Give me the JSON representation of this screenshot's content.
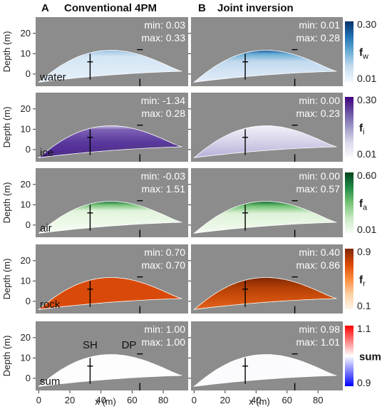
{
  "columns": [
    {
      "letter": "A",
      "title": "Conventional 4PM"
    },
    {
      "letter": "B",
      "title": "Joint inversion"
    }
  ],
  "axes": {
    "ylabel": "Depth (m)",
    "xlabel": "x (m)",
    "xticks": [
      "0",
      "20",
      "40",
      "60",
      "80"
    ],
    "yticks": [
      "0",
      "10",
      "20"
    ]
  },
  "markers": {
    "sh": "SH",
    "dp": "DP"
  },
  "rows": [
    {
      "key": "water",
      "label": "water",
      "colorbar": {
        "symbol": "f",
        "sub": "w",
        "max": "0.30",
        "min": "0.01",
        "colors": [
          "#f4f9fe",
          "#c6dcef",
          "#6aaed6",
          "#2171b5",
          "#08306b"
        ]
      },
      "conventional": {
        "min": "min: 0.03",
        "max": "max: 0.33"
      },
      "joint": {
        "min": "min: 0.01",
        "max": "max: 0.28"
      }
    },
    {
      "key": "ice",
      "label": "ice",
      "colorbar": {
        "symbol": "f",
        "sub": "i",
        "max": "0.30",
        "min": "0.01",
        "colors": [
          "#fbfafd",
          "#dadaeb",
          "#9e9ac8",
          "#6a51a3",
          "#3f007d"
        ]
      },
      "conventional": {
        "min": "min: -1.34",
        "max": "max: 0.28"
      },
      "joint": {
        "min": "min: 0.00",
        "max": "max: 0.23"
      }
    },
    {
      "key": "air",
      "label": "air",
      "colorbar": {
        "symbol": "f",
        "sub": "a",
        "max": "0.60",
        "min": "0.01",
        "colors": [
          "#f7fcf5",
          "#c7e9c0",
          "#74c476",
          "#238b45",
          "#00441b"
        ]
      },
      "conventional": {
        "min": "min: -0.03",
        "max": "max: 1.51"
      },
      "joint": {
        "min": "min: 0.00",
        "max": "max: 0.57"
      }
    },
    {
      "key": "rock",
      "label": "rock",
      "colorbar": {
        "symbol": "f",
        "sub": "r",
        "max": "0.9",
        "min": "0.1",
        "colors": [
          "#fff5eb",
          "#fdd0a2",
          "#fd8d3c",
          "#d94801",
          "#7f2704"
        ]
      },
      "conventional": {
        "min": "min: 0.70",
        "max": "max: 0.70"
      },
      "joint": {
        "min": "min: 0.40",
        "max": "max: 0.86"
      }
    },
    {
      "key": "sum",
      "label": "sum",
      "colorbar": {
        "symbol": "sum",
        "sub": "",
        "max": "1.1",
        "min": "0.9",
        "colors": [
          "#0000ff",
          "#8080ff",
          "#ffffff",
          "#ff8080",
          "#ff0000"
        ]
      },
      "conventional": {
        "min": "min: 1.00",
        "max": "max: 1.00"
      },
      "joint": {
        "min": "min: 0.98",
        "max": "max: 1.01"
      }
    }
  ],
  "chart_data": {
    "type": "heatmap",
    "xlabel": "x (m)",
    "ylabel": "Depth (m)",
    "xlim": [
      -2,
      96
    ],
    "ylim": [
      28,
      -6
    ],
    "series": [
      {
        "name": "water",
        "conventional": {
          "min": 0.03,
          "max": 0.33
        },
        "joint": {
          "min": 0.01,
          "max": 0.28
        },
        "colorbar_range": [
          0.01,
          0.3
        ]
      },
      {
        "name": "ice",
        "conventional": {
          "min": -1.34,
          "max": 0.28
        },
        "joint": {
          "min": 0.0,
          "max": 0.23
        },
        "colorbar_range": [
          0.01,
          0.3
        ]
      },
      {
        "name": "air",
        "conventional": {
          "min": -0.03,
          "max": 1.51
        },
        "joint": {
          "min": 0.0,
          "max": 0.57
        },
        "colorbar_range": [
          0.01,
          0.6
        ]
      },
      {
        "name": "rock",
        "conventional": {
          "min": 0.7,
          "max": 0.7
        },
        "joint": {
          "min": 0.4,
          "max": 0.86
        },
        "colorbar_range": [
          0.1,
          0.9
        ]
      },
      {
        "name": "sum",
        "conventional": {
          "min": 1.0,
          "max": 1.0
        },
        "joint": {
          "min": 0.98,
          "max": 1.01
        },
        "colorbar_range": [
          0.9,
          1.1
        ]
      }
    ],
    "boreholes": [
      {
        "label": "SH",
        "x": 33
      },
      {
        "label": "DP",
        "x": 65
      }
    ]
  }
}
